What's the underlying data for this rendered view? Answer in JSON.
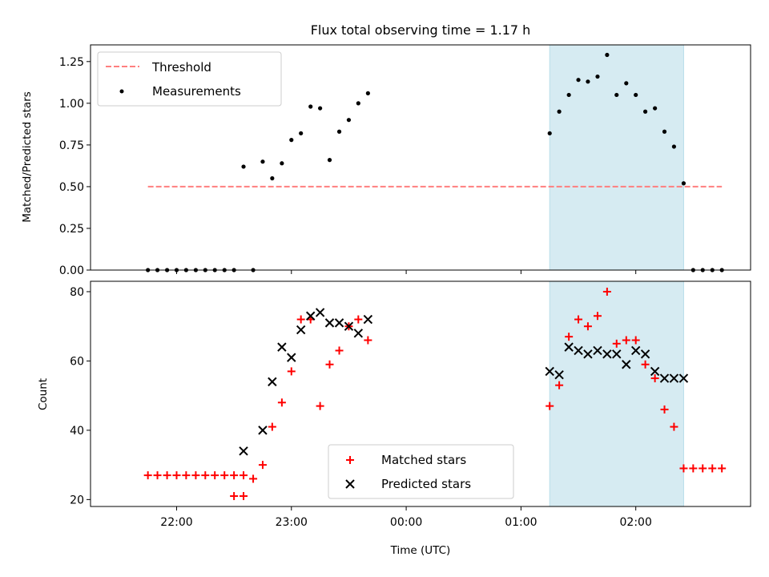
{
  "chart_data": [
    {
      "type": "scatter",
      "title": "Flux total observing time = 1.17 h",
      "ylabel": "Matched/Predicted stars",
      "xlabel": "",
      "ylim": [
        0,
        1.35
      ],
      "yticks": [
        "0.00",
        "0.25",
        "0.50",
        "0.75",
        "1.00",
        "1.25"
      ],
      "ytick_values": [
        0,
        0.25,
        0.5,
        0.75,
        1.0,
        1.25
      ],
      "legend_position": "top-left",
      "grid": false,
      "threshold": {
        "name": "Threshold",
        "y": 0.5,
        "x_start": -0.25,
        "x_end": 4.75,
        "color": "#ff7f7f"
      },
      "span": {
        "x_start": 3.25,
        "x_end": 4.417,
        "color": "#add8e6"
      },
      "series": [
        {
          "name": "Measurements",
          "color": "#000000",
          "x": [
            -0.25,
            -0.167,
            -0.083,
            0,
            0.083,
            0.167,
            0.25,
            0.333,
            0.417,
            0.5,
            0.583,
            0.667,
            0.75,
            0.833,
            0.917,
            1.0,
            1.083,
            1.167,
            1.25,
            1.333,
            1.417,
            1.5,
            1.583,
            1.667,
            3.25,
            3.333,
            3.417,
            3.5,
            3.583,
            3.667,
            3.75,
            3.833,
            3.917,
            4.0,
            4.083,
            4.167,
            4.25,
            4.333,
            4.417,
            4.5,
            4.583,
            4.667,
            4.75
          ],
          "y": [
            0,
            0,
            0,
            0,
            0,
            0,
            0,
            0,
            0,
            0,
            0.62,
            0,
            0.65,
            0.55,
            0.64,
            0.78,
            0.82,
            0.98,
            0.97,
            0.66,
            0.83,
            0.9,
            1.0,
            1.06,
            0.82,
            0.95,
            1.05,
            1.14,
            1.13,
            1.16,
            1.29,
            1.05,
            1.12,
            1.05,
            0.95,
            0.97,
            0.83,
            0.74,
            0.52,
            0,
            0,
            0,
            0
          ]
        }
      ]
    },
    {
      "type": "scatter",
      "title": "",
      "ylabel": "Count",
      "xlabel": "Time (UTC)",
      "ylim": [
        18,
        83
      ],
      "yticks": [
        "20",
        "40",
        "60",
        "80"
      ],
      "ytick_values": [
        20,
        40,
        60,
        80
      ],
      "xlim": [
        -0.75,
        5.0
      ],
      "xticks": [
        "22:00",
        "23:00",
        "00:00",
        "01:00",
        "02:00"
      ],
      "xtick_values": [
        0,
        1,
        2,
        3,
        4
      ],
      "legend_position": "lower-center",
      "grid": false,
      "span": {
        "x_start": 3.25,
        "x_end": 4.417,
        "color": "#add8e6"
      },
      "series": [
        {
          "name": "Matched stars",
          "color": "#ff0000",
          "marker": "plus",
          "x": [
            -0.25,
            -0.167,
            -0.083,
            0,
            0.083,
            0.167,
            0.25,
            0.333,
            0.417,
            0.5,
            0.583,
            0.5,
            0.583,
            0.667,
            0.75,
            0.833,
            0.917,
            1.0,
            1.083,
            1.167,
            1.25,
            1.333,
            1.417,
            1.5,
            1.583,
            1.667,
            3.25,
            3.333,
            3.417,
            3.5,
            3.583,
            3.667,
            3.75,
            3.833,
            3.917,
            4.0,
            4.083,
            4.167,
            4.25,
            4.333,
            4.417,
            4.5,
            4.583,
            4.667,
            4.75
          ],
          "y": [
            27,
            27,
            27,
            27,
            27,
            27,
            27,
            27,
            27,
            27,
            27,
            21,
            21,
            26,
            30,
            41,
            48,
            57,
            72,
            72,
            47,
            59,
            63,
            70,
            72,
            66,
            47,
            53,
            67,
            72,
            70,
            73,
            80,
            65,
            66,
            66,
            59,
            55,
            46,
            41,
            29,
            29,
            29,
            29,
            29
          ]
        },
        {
          "name": "Predicted stars",
          "color": "#000000",
          "marker": "x",
          "x": [
            0.583,
            0.75,
            0.833,
            0.917,
            1.0,
            1.083,
            1.167,
            1.25,
            1.333,
            1.417,
            1.5,
            1.583,
            1.667,
            3.25,
            3.333,
            3.417,
            3.5,
            3.583,
            3.667,
            3.75,
            3.833,
            3.917,
            4.0,
            4.083,
            4.167,
            4.25,
            4.333,
            4.417
          ],
          "y": [
            34,
            40,
            54,
            64,
            61,
            69,
            73,
            74,
            71,
            71,
            70,
            68,
            72,
            57,
            56,
            64,
            63,
            62,
            63,
            62,
            62,
            59,
            63,
            62,
            57,
            55,
            55,
            55
          ]
        }
      ]
    }
  ]
}
